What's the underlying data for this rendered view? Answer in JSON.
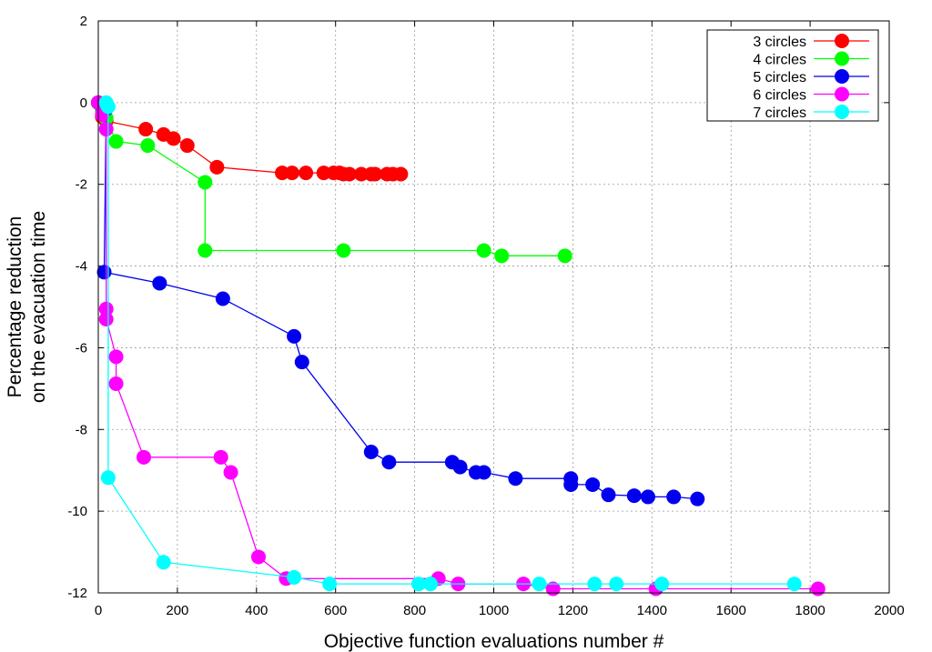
{
  "chart_data": {
    "type": "line",
    "title": "",
    "xlabel": "Objective function evaluations number #",
    "ylabel": [
      "Percentage reduction",
      "on the evacuation time"
    ],
    "xlim": [
      0,
      2000
    ],
    "ylim": [
      -12,
      2
    ],
    "xticks": [
      0,
      200,
      400,
      600,
      800,
      1000,
      1200,
      1400,
      1600,
      1800,
      2000
    ],
    "yticks": [
      2,
      0,
      -2,
      -4,
      -6,
      -8,
      -10,
      -12
    ],
    "grid": true,
    "legend_position": "top-right",
    "series": [
      {
        "name": "3 circles",
        "color": "#ff0000",
        "x": [
          0,
          10,
          20,
          120,
          165,
          190,
          225,
          300,
          465,
          490,
          525,
          570,
          595,
          610,
          620,
          635,
          665,
          690,
          700,
          730,
          745,
          765
        ],
        "y": [
          0,
          -0.35,
          -0.45,
          -0.65,
          -0.78,
          -0.88,
          -1.05,
          -1.58,
          -1.72,
          -1.72,
          -1.72,
          -1.72,
          -1.72,
          -1.72,
          -1.75,
          -1.75,
          -1.75,
          -1.75,
          -1.75,
          -1.75,
          -1.75,
          -1.75
        ]
      },
      {
        "name": "4 circles",
        "color": "#00ff00",
        "x": [
          0,
          10,
          20,
          45,
          125,
          270,
          270,
          620,
          975,
          1020,
          1180
        ],
        "y": [
          0,
          -0.2,
          -0.38,
          -0.95,
          -1.05,
          -1.95,
          -3.62,
          -3.62,
          -3.62,
          -3.75,
          -3.75
        ]
      },
      {
        "name": "5 circles",
        "color": "#0000ee",
        "x": [
          0,
          10,
          20,
          15,
          155,
          315,
          495,
          515,
          690,
          735,
          895,
          915,
          955,
          975,
          1055,
          1195,
          1195,
          1250,
          1290,
          1355,
          1390,
          1455,
          1515
        ],
        "y": [
          0,
          -0.1,
          -0.15,
          -4.15,
          -4.42,
          -4.8,
          -5.72,
          -6.35,
          -8.55,
          -8.8,
          -8.8,
          -8.92,
          -9.05,
          -9.05,
          -9.2,
          -9.2,
          -9.35,
          -9.35,
          -9.6,
          -9.62,
          -9.65,
          -9.65,
          -9.7
        ]
      },
      {
        "name": "6 circles",
        "color": "#ff00ff",
        "x": [
          0,
          10,
          20,
          20,
          20,
          45,
          45,
          115,
          310,
          335,
          405,
          475,
          860,
          910,
          1075,
          1150,
          1410,
          1820
        ],
        "y": [
          0,
          -0.3,
          -0.65,
          -5.05,
          -5.3,
          -6.22,
          -6.88,
          -8.68,
          -8.68,
          -9.05,
          -11.12,
          -11.65,
          -11.65,
          -11.78,
          -11.78,
          -11.9,
          -11.9,
          -11.9
        ]
      },
      {
        "name": "7 circles",
        "color": "#00ffff",
        "x": [
          20,
          22,
          25,
          25,
          165,
          495,
          585,
          810,
          840,
          1115,
          1255,
          1310,
          1425,
          1760
        ],
        "y": [
          0,
          -0.05,
          -0.1,
          -9.18,
          -11.25,
          -11.62,
          -11.78,
          -11.78,
          -11.78,
          -11.78,
          -11.78,
          -11.78,
          -11.78,
          -11.78
        ]
      }
    ]
  }
}
